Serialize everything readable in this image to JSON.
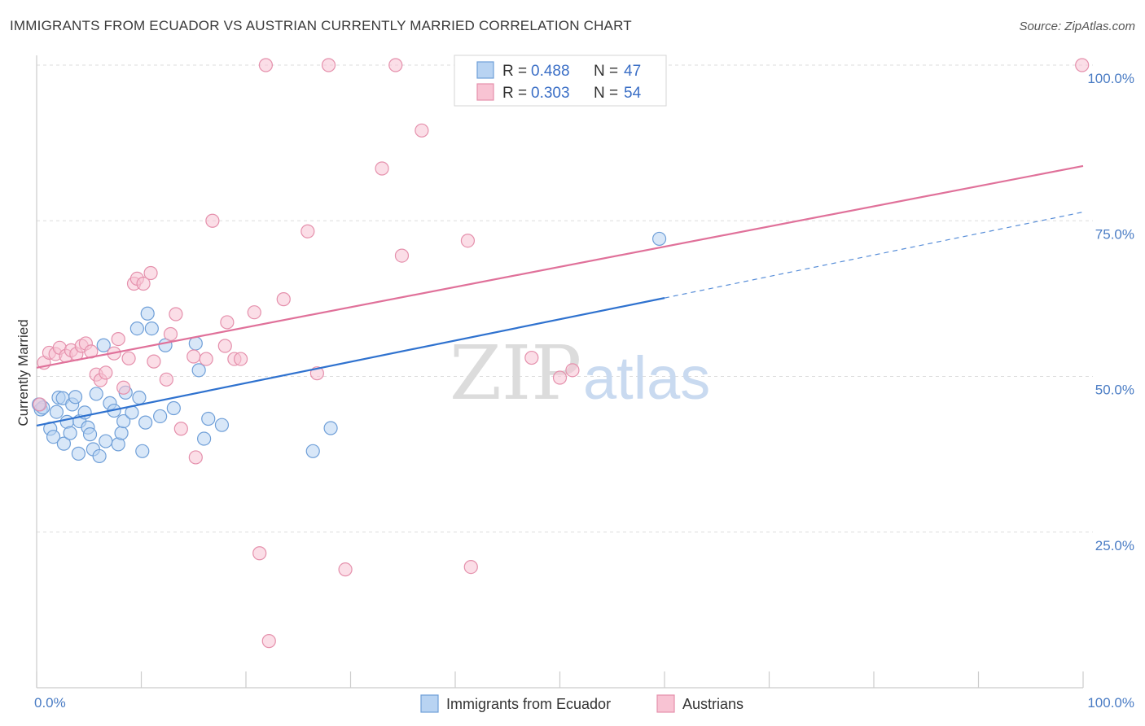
{
  "title": "IMMIGRANTS FROM ECUADOR VS AUSTRIAN CURRENTLY MARRIED CORRELATION CHART",
  "source": "Source: ZipAtlas.com",
  "watermark": {
    "zip": "ZIP",
    "atlas": "atlas"
  },
  "colors": {
    "blue_fill": "#b8d3f2",
    "blue_stroke": "#6f9fd8",
    "blue_line": "#2f72cf",
    "pink_fill": "#f8c3d3",
    "pink_stroke": "#e590ac",
    "pink_line": "#e0719a",
    "grid": "#dddddd",
    "tick_label": "#4a7cc4"
  },
  "legend": {
    "rows": [
      {
        "r_label": "R =",
        "r_value": "0.488",
        "n_label": "N =",
        "n_value": "47"
      },
      {
        "r_label": "R =",
        "r_value": "0.303",
        "n_label": "N =",
        "n_value": "54"
      }
    ]
  },
  "chart_data": {
    "type": "scatter",
    "title": "IMMIGRANTS FROM ECUADOR VS AUSTRIAN CURRENTLY MARRIED CORRELATION CHART",
    "xlabel": "",
    "ylabel": "Currently Married",
    "xlim": [
      0,
      100
    ],
    "ylim": [
      0,
      100
    ],
    "x_tick_labels": [
      "0.0%",
      "100.0%"
    ],
    "y_tick_labels": [
      "25.0%",
      "50.0%",
      "75.0%",
      "100.0%"
    ],
    "y_ticks": [
      25,
      50,
      75,
      100
    ],
    "grid": true,
    "legend_position": "top-center",
    "series": [
      {
        "name": "Immigrants from Ecuador",
        "color": "#b8d3f2",
        "r": 0.488,
        "n": 47,
        "trend": {
          "x0": 0,
          "y0": 42.1,
          "x1": 60,
          "y1": 62.6,
          "dash_x1": 100,
          "dash_y1": 76.4
        },
        "points": [
          [
            0.4,
            44.7
          ],
          [
            0.6,
            45.0
          ],
          [
            1.3,
            41.6
          ],
          [
            1.6,
            40.3
          ],
          [
            1.9,
            44.3
          ],
          [
            2.1,
            46.6
          ],
          [
            2.5,
            46.5
          ],
          [
            2.6,
            39.2
          ],
          [
            2.9,
            42.7
          ],
          [
            3.2,
            40.9
          ],
          [
            3.4,
            45.5
          ],
          [
            3.7,
            46.7
          ],
          [
            4.0,
            37.6
          ],
          [
            4.1,
            42.8
          ],
          [
            4.6,
            44.2
          ],
          [
            4.9,
            41.8
          ],
          [
            5.1,
            40.7
          ],
          [
            5.4,
            38.3
          ],
          [
            5.7,
            47.2
          ],
          [
            6.0,
            37.2
          ],
          [
            6.4,
            55.0
          ],
          [
            6.6,
            39.6
          ],
          [
            7.0,
            45.7
          ],
          [
            7.4,
            44.5
          ],
          [
            7.8,
            39.1
          ],
          [
            8.1,
            40.9
          ],
          [
            8.3,
            42.8
          ],
          [
            8.5,
            47.4
          ],
          [
            9.1,
            44.2
          ],
          [
            9.6,
            57.7
          ],
          [
            9.8,
            46.6
          ],
          [
            10.1,
            38.0
          ],
          [
            10.4,
            42.6
          ],
          [
            10.6,
            60.1
          ],
          [
            11.0,
            57.7
          ],
          [
            11.8,
            43.6
          ],
          [
            12.3,
            55.0
          ],
          [
            13.1,
            44.9
          ],
          [
            15.2,
            55.3
          ],
          [
            15.5,
            51.0
          ],
          [
            16.0,
            40.0
          ],
          [
            16.4,
            43.2
          ],
          [
            17.7,
            42.2
          ],
          [
            26.4,
            38.0
          ],
          [
            28.1,
            41.7
          ],
          [
            59.5,
            72.1
          ],
          [
            0.2,
            45.5
          ]
        ]
      },
      {
        "name": "Austrians",
        "color": "#f8c3d3",
        "r": 0.303,
        "n": 54,
        "trend": {
          "x0": 0,
          "y0": 51.4,
          "x1": 100,
          "y1": 83.8
        },
        "points": [
          [
            0.3,
            45.5
          ],
          [
            0.7,
            52.2
          ],
          [
            1.2,
            53.8
          ],
          [
            1.8,
            53.6
          ],
          [
            2.2,
            54.6
          ],
          [
            2.8,
            53.3
          ],
          [
            3.3,
            54.2
          ],
          [
            3.8,
            53.6
          ],
          [
            4.3,
            54.9
          ],
          [
            4.7,
            55.3
          ],
          [
            5.2,
            54.0
          ],
          [
            5.7,
            50.3
          ],
          [
            6.1,
            49.4
          ],
          [
            6.6,
            50.6
          ],
          [
            7.4,
            53.7
          ],
          [
            7.8,
            56.0
          ],
          [
            8.3,
            48.2
          ],
          [
            8.8,
            52.9
          ],
          [
            9.3,
            64.9
          ],
          [
            9.6,
            65.7
          ],
          [
            10.2,
            64.9
          ],
          [
            10.9,
            66.6
          ],
          [
            11.2,
            52.4
          ],
          [
            12.4,
            49.5
          ],
          [
            12.8,
            56.8
          ],
          [
            13.3,
            60.0
          ],
          [
            13.8,
            41.6
          ],
          [
            15.0,
            53.2
          ],
          [
            15.2,
            37.0
          ],
          [
            16.2,
            52.8
          ],
          [
            16.8,
            75.0
          ],
          [
            18.0,
            54.9
          ],
          [
            18.2,
            58.7
          ],
          [
            18.9,
            52.8
          ],
          [
            19.5,
            52.8
          ],
          [
            20.8,
            60.3
          ],
          [
            21.3,
            21.6
          ],
          [
            21.9,
            100.0
          ],
          [
            22.2,
            7.5
          ],
          [
            23.6,
            62.4
          ],
          [
            25.9,
            73.3
          ],
          [
            26.8,
            50.5
          ],
          [
            27.9,
            100.0
          ],
          [
            29.5,
            19.0
          ],
          [
            33.0,
            83.4
          ],
          [
            34.3,
            100.0
          ],
          [
            34.9,
            69.4
          ],
          [
            36.8,
            89.5
          ],
          [
            41.2,
            71.8
          ],
          [
            41.5,
            19.4
          ],
          [
            47.3,
            53.0
          ],
          [
            50.0,
            49.8
          ],
          [
            51.2,
            51.0
          ],
          [
            99.9,
            100.0
          ]
        ]
      }
    ]
  }
}
